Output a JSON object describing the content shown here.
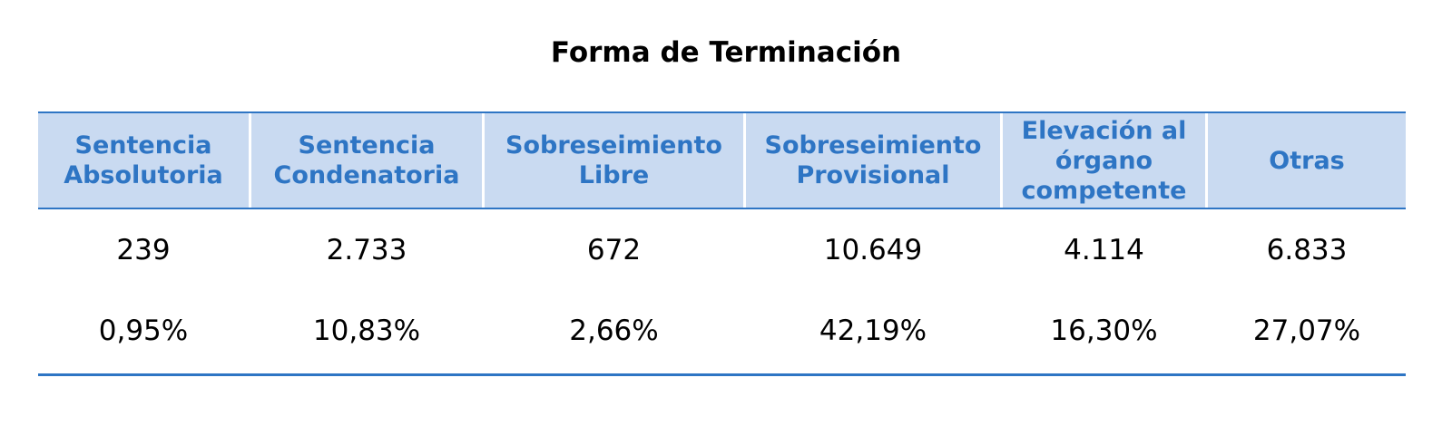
{
  "title": "Forma de Terminación",
  "table": {
    "headers": [
      "Sentencia\nAbsolutoria",
      "Sentencia\nCondenatoria",
      "Sobreseimiento\nLibre",
      "Sobreseimiento\nProvisional",
      "Elevación al\nórgano\ncompetente",
      "Otras"
    ],
    "rows": [
      [
        "239",
        "2.733",
        "672",
        "10.649",
        "4.114",
        "6.833"
      ],
      [
        "0,95%",
        "10,83%",
        "2,66%",
        "42,19%",
        "16,30%",
        "27,07%"
      ]
    ]
  },
  "colors": {
    "header_text": "#2e75c4",
    "header_background": "#c9daf1",
    "rule": "#2e75c4"
  }
}
